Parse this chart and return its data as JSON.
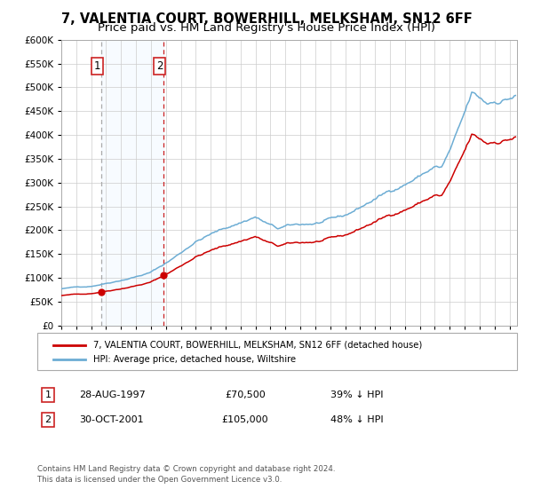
{
  "title1": "7, VALENTIA COURT, BOWERHILL, MELKSHAM, SN12 6FF",
  "title2": "Price paid vs. HM Land Registry's House Price Index (HPI)",
  "ylim": [
    0,
    600000
  ],
  "yticks": [
    0,
    50000,
    100000,
    150000,
    200000,
    250000,
    300000,
    350000,
    400000,
    450000,
    500000,
    550000,
    600000
  ],
  "xlim_start": 1995.0,
  "xlim_end": 2025.5,
  "sale1_date": 1997.65,
  "sale1_price": 70500,
  "sale2_date": 2001.83,
  "sale2_price": 105000,
  "hpi_color": "#6dadd4",
  "price_color": "#cc0000",
  "shade_color": "#ddeeff",
  "legend_house_label": "7, VALENTIA COURT, BOWERHILL, MELKSHAM, SN12 6FF (detached house)",
  "legend_hpi_label": "HPI: Average price, detached house, Wiltshire",
  "footnote1": "Contains HM Land Registry data © Crown copyright and database right 2024.",
  "footnote2": "This data is licensed under the Open Government Licence v3.0.",
  "grid_color": "#cccccc",
  "title1_fontsize": 10.5,
  "title2_fontsize": 9.5
}
